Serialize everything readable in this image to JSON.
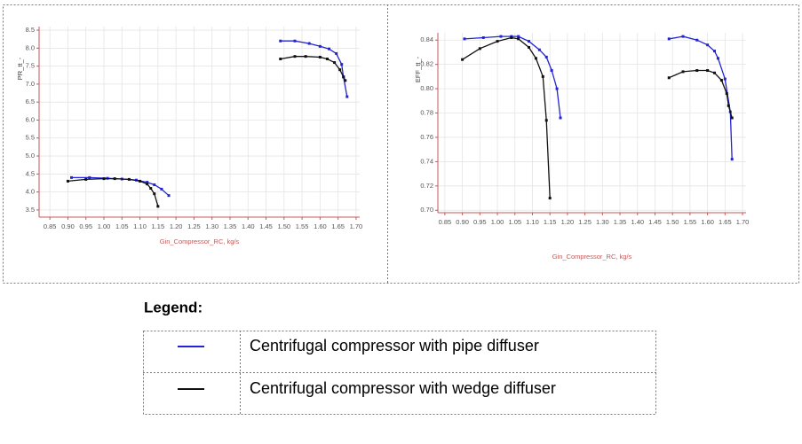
{
  "chart_data": [
    {
      "type": "line",
      "ylabel": "PR_tt_-",
      "xlabel": "Gin_Compressor_RC, kg/s",
      "xlim": [
        0.82,
        1.71
      ],
      "ylim": [
        3.3,
        8.6
      ],
      "xticks": [
        {
          "value": 0.85,
          "label": "0.85"
        },
        {
          "value": 0.9,
          "label": "0.90"
        },
        {
          "value": 0.95,
          "label": "0.95"
        },
        {
          "value": 1.0,
          "label": "1.00"
        },
        {
          "value": 1.05,
          "label": "1.05"
        },
        {
          "value": 1.1,
          "label": "1.10"
        },
        {
          "value": 1.15,
          "label": "1.15"
        },
        {
          "value": 1.2,
          "label": "1.20"
        },
        {
          "value": 1.25,
          "label": "1.25"
        },
        {
          "value": 1.3,
          "label": "1.30"
        },
        {
          "value": 1.35,
          "label": "1.35"
        },
        {
          "value": 1.4,
          "label": "1.40"
        },
        {
          "value": 1.45,
          "label": "1.45"
        },
        {
          "value": 1.5,
          "label": "1.50"
        },
        {
          "value": 1.55,
          "label": "1.55"
        },
        {
          "value": 1.6,
          "label": "1.60"
        },
        {
          "value": 1.65,
          "label": "1.65"
        },
        {
          "value": 1.7,
          "label": "1.70"
        }
      ],
      "yticks": [
        {
          "value": 3.5,
          "label": "3.5"
        },
        {
          "value": 4.0,
          "label": "4.0"
        },
        {
          "value": 4.5,
          "label": "4.5"
        },
        {
          "value": 5.0,
          "label": "5.0"
        },
        {
          "value": 5.5,
          "label": "5.5"
        },
        {
          "value": 6.0,
          "label": "6.0"
        },
        {
          "value": 6.5,
          "label": "6.5"
        },
        {
          "value": 7.0,
          "label": "7.0"
        },
        {
          "value": 7.5,
          "label": "7.5"
        },
        {
          "value": 8.0,
          "label": "8.0"
        },
        {
          "value": 8.5,
          "label": "8.5"
        }
      ],
      "grid": true,
      "series": [
        {
          "name": "Centrifugal compressor with pipe diffuser",
          "color": "#2323d6",
          "x": [
            0.91,
            0.96,
            1.01,
            1.05,
            1.09,
            1.12,
            1.14,
            1.16,
            1.18,
            null,
            1.49,
            1.53,
            1.57,
            1.6,
            1.625,
            1.645,
            1.66,
            1.665,
            1.675
          ],
          "values": [
            4.4,
            4.4,
            4.38,
            4.36,
            4.33,
            4.27,
            4.2,
            4.08,
            3.9,
            null,
            8.2,
            8.2,
            8.13,
            8.05,
            7.98,
            7.85,
            7.55,
            7.2,
            6.65
          ]
        },
        {
          "name": "Centrifugal compressor with wedge diffuser",
          "color": "#111111",
          "x": [
            0.9,
            0.95,
            1.0,
            1.03,
            1.07,
            1.1,
            1.12,
            1.13,
            1.14,
            1.15,
            null,
            1.49,
            1.53,
            1.56,
            1.6,
            1.62,
            1.64,
            1.655,
            1.665,
            1.67
          ],
          "values": [
            4.3,
            4.35,
            4.37,
            4.37,
            4.35,
            4.3,
            4.22,
            4.1,
            3.95,
            3.6,
            null,
            7.7,
            7.77,
            7.77,
            7.75,
            7.7,
            7.6,
            7.4,
            7.2,
            7.1
          ]
        }
      ]
    },
    {
      "type": "line",
      "ylabel": "EFF_tt_-",
      "xlabel": "Gin_Compressor_RC, kg/s",
      "xlim": [
        0.83,
        1.71
      ],
      "ylim": [
        0.698,
        0.846
      ],
      "xticks": [
        {
          "value": 0.85,
          "label": "0.85"
        },
        {
          "value": 0.9,
          "label": "0.90"
        },
        {
          "value": 0.95,
          "label": "0.95"
        },
        {
          "value": 1.0,
          "label": "1.00"
        },
        {
          "value": 1.05,
          "label": "1.05"
        },
        {
          "value": 1.1,
          "label": "1.10"
        },
        {
          "value": 1.15,
          "label": "1.15"
        },
        {
          "value": 1.2,
          "label": "1.20"
        },
        {
          "value": 1.25,
          "label": "1.25"
        },
        {
          "value": 1.3,
          "label": "1.30"
        },
        {
          "value": 1.35,
          "label": "1.35"
        },
        {
          "value": 1.4,
          "label": "1.40"
        },
        {
          "value": 1.45,
          "label": "1.45"
        },
        {
          "value": 1.5,
          "label": "1.50"
        },
        {
          "value": 1.55,
          "label": "1.55"
        },
        {
          "value": 1.6,
          "label": "1.60"
        },
        {
          "value": 1.65,
          "label": "1.65"
        },
        {
          "value": 1.7,
          "label": "1.70"
        }
      ],
      "yticks": [
        {
          "value": 0.7,
          "label": "0.70"
        },
        0.72,
        0.74,
        0.76,
        0.78,
        {
          "value": 0.8,
          "label": "0.80"
        },
        0.82,
        0.84
      ],
      "grid": true,
      "series": [
        {
          "name": "Centrifugal compressor with pipe diffuser",
          "color": "#2323d6",
          "x": [
            0.906,
            0.96,
            1.01,
            1.04,
            1.06,
            1.09,
            1.12,
            1.14,
            1.155,
            1.17,
            1.18,
            null,
            1.49,
            1.53,
            1.57,
            1.6,
            1.62,
            1.63,
            1.65,
            1.665,
            1.67
          ],
          "values": [
            0.841,
            0.842,
            0.843,
            0.843,
            0.843,
            0.839,
            0.832,
            0.826,
            0.815,
            0.8,
            0.776,
            null,
            0.841,
            0.843,
            0.84,
            0.836,
            0.831,
            0.825,
            0.808,
            0.781,
            0.742
          ]
        },
        {
          "name": "Centrifugal compressor with wedge diffuser",
          "color": "#111111",
          "x": [
            0.9,
            0.95,
            1.0,
            1.04,
            1.06,
            1.09,
            1.11,
            1.13,
            1.14,
            1.15,
            null,
            1.49,
            1.53,
            1.57,
            1.6,
            1.62,
            1.64,
            1.655,
            1.66,
            1.67
          ],
          "values": [
            0.824,
            0.833,
            0.839,
            0.842,
            0.841,
            0.834,
            0.825,
            0.81,
            0.774,
            0.71,
            null,
            0.809,
            0.814,
            0.815,
            0.815,
            0.813,
            0.807,
            0.796,
            0.786,
            0.776
          ]
        }
      ]
    }
  ],
  "legend_title": "Legend:"
}
